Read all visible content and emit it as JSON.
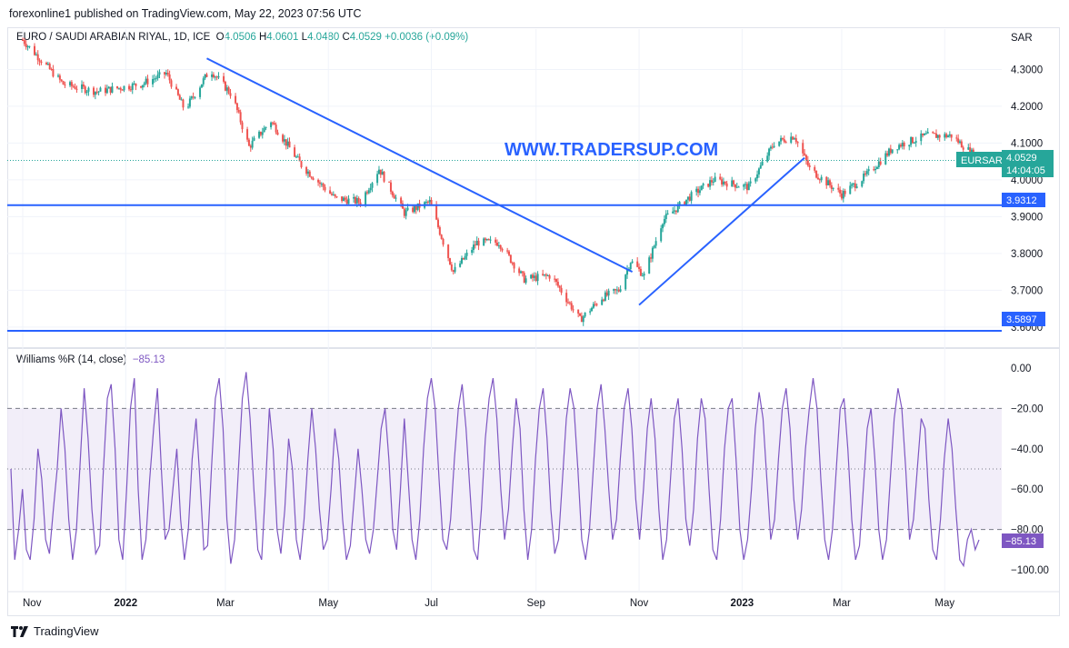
{
  "header": {
    "published": "forexonline1 published on TradingView.com, May 22, 2023 07:56 UTC"
  },
  "legend": {
    "symbol": "EURO / SAUDI ARABIAN RIYAL, 1D, ICE",
    "o_label": "O",
    "o": "4.0506",
    "h_label": "H",
    "h": "4.0601",
    "l_label": "L",
    "l": "4.0480",
    "c_label": "C",
    "c": "4.0529",
    "change": "+0.0036 (+0.09%)"
  },
  "indicator_legend": {
    "name": "Williams %R (14, close)",
    "value": "−85.13"
  },
  "watermark": "WWW.TRADERSUP.COM",
  "currency": "SAR",
  "price_tags": {
    "symbol": "EURSAR",
    "last": "4.0529",
    "countdown": "14:04:05",
    "upper_line": "3.9312",
    "lower_line": "3.5897",
    "wr_value": "−85.13"
  },
  "footer": {
    "brand": "TradingView"
  },
  "colors": {
    "up": "#26a69a",
    "down": "#ef5350",
    "trendline": "#2962ff",
    "wr": "#7e57c2",
    "band": "#ede7f6"
  },
  "chart_data": [
    {
      "type": "candlestick",
      "title": "EURO / SAUDI ARABIAN RIYAL, 1D, ICE",
      "y_ticks": [
        "4.3000",
        "4.2000",
        "4.1000",
        "4.0000",
        "3.9000",
        "3.8000",
        "3.7000",
        "3.6000"
      ],
      "x_ticks": [
        "Nov",
        "2022",
        "Mar",
        "May",
        "Jul",
        "Sep",
        "Nov",
        "2023",
        "Mar",
        "May"
      ],
      "ylim": [
        3.57,
        4.39
      ],
      "horizontal_levels": [
        3.9312,
        3.5897
      ],
      "last_price": 4.0529,
      "price_path": [
        [
          "2021-11-01",
          4.38
        ],
        [
          "2021-11-25",
          4.26
        ],
        [
          "2021-12-15",
          4.24
        ],
        [
          "2022-01-10",
          4.26
        ],
        [
          "2022-01-25",
          4.29
        ],
        [
          "2022-02-05",
          4.19
        ],
        [
          "2022-02-20",
          4.3
        ],
        [
          "2022-03-05",
          4.23
        ],
        [
          "2022-03-15",
          4.09
        ],
        [
          "2022-03-28",
          4.16
        ],
        [
          "2022-04-15",
          4.04
        ],
        [
          "2022-05-05",
          3.95
        ],
        [
          "2022-05-20",
          3.94
        ],
        [
          "2022-05-31",
          4.03
        ],
        [
          "2022-06-15",
          3.91
        ],
        [
          "2022-06-30",
          3.94
        ],
        [
          "2022-07-14",
          3.75
        ],
        [
          "2022-07-28",
          3.83
        ],
        [
          "2022-08-10",
          3.83
        ],
        [
          "2022-08-25",
          3.73
        ],
        [
          "2022-09-10",
          3.74
        ],
        [
          "2022-09-27",
          3.62
        ],
        [
          "2022-10-10",
          3.68
        ],
        [
          "2022-10-20",
          3.7
        ],
        [
          "2022-10-27",
          3.78
        ],
        [
          "2022-11-04",
          3.74
        ],
        [
          "2022-11-15",
          3.89
        ],
        [
          "2022-11-30",
          3.95
        ],
        [
          "2022-12-15",
          4.0
        ],
        [
          "2023-01-05",
          3.98
        ],
        [
          "2023-01-20",
          4.1
        ],
        [
          "2023-02-01",
          4.12
        ],
        [
          "2023-02-10",
          4.03
        ],
        [
          "2023-03-01",
          3.96
        ],
        [
          "2023-03-15",
          4.01
        ],
        [
          "2023-04-01",
          4.09
        ],
        [
          "2023-04-20",
          4.12
        ],
        [
          "2023-05-05",
          4.12
        ],
        [
          "2023-05-22",
          4.0529
        ]
      ],
      "trendlines": [
        {
          "from": [
            "2022-02-18",
            4.33
          ],
          "to": [
            "2022-10-28",
            3.75
          ]
        },
        {
          "from": [
            "2022-11-01",
            3.66
          ],
          "to": [
            "2023-02-07",
            4.06
          ]
        }
      ]
    },
    {
      "type": "line",
      "title": "Williams %R (14, close)",
      "y_ticks": [
        "0.00",
        "−20.00",
        "−40.00",
        "−60.00",
        "−80.00",
        "−100.00"
      ],
      "ylim": [
        -100,
        0
      ],
      "band": [
        -80,
        -20
      ],
      "levels": [
        -20,
        -50,
        -80
      ],
      "last_value": -85.13,
      "series": [
        {
          "values": [
            -50,
            -95,
            -80,
            -60,
            -90,
            -95,
            -75,
            -40,
            -55,
            -85,
            -92,
            -70,
            -50,
            -20,
            -40,
            -75,
            -95,
            -80,
            -45,
            -10,
            -35,
            -70,
            -92,
            -88,
            -50,
            -15,
            -8,
            -40,
            -85,
            -95,
            -60,
            -20,
            -5,
            -60,
            -95,
            -85,
            -55,
            -30,
            -10,
            -50,
            -85,
            -80,
            -60,
            -40,
            -75,
            -95,
            -80,
            -45,
            -25,
            -55,
            -90,
            -88,
            -50,
            -15,
            -5,
            -30,
            -75,
            -97,
            -85,
            -50,
            -15,
            -2,
            -25,
            -60,
            -90,
            -95,
            -60,
            -20,
            -40,
            -80,
            -92,
            -70,
            -35,
            -50,
            -85,
            -95,
            -75,
            -45,
            -20,
            -40,
            -70,
            -90,
            -85,
            -60,
            -30,
            -45,
            -75,
            -95,
            -88,
            -65,
            -40,
            -60,
            -85,
            -92,
            -80,
            -55,
            -30,
            -20,
            -45,
            -80,
            -90,
            -60,
            -25,
            -55,
            -85,
            -95,
            -75,
            -40,
            -15,
            -5,
            -20,
            -55,
            -85,
            -90,
            -75,
            -45,
            -20,
            -8,
            -30,
            -60,
            -90,
            -95,
            -70,
            -35,
            -15,
            -5,
            -25,
            -60,
            -85,
            -70,
            -40,
            -15,
            -30,
            -70,
            -95,
            -80,
            -45,
            -20,
            -10,
            -35,
            -70,
            -92,
            -85,
            -55,
            -25,
            -10,
            -20,
            -50,
            -85,
            -95,
            -80,
            -50,
            -20,
            -8,
            -30,
            -60,
            -85,
            -75,
            -45,
            -20,
            -10,
            -30,
            -65,
            -85,
            -60,
            -30,
            -15,
            -35,
            -70,
            -95,
            -85,
            -55,
            -25,
            -15,
            -40,
            -75,
            -88,
            -70,
            -35,
            -15,
            -25,
            -60,
            -90,
            -95,
            -75,
            -40,
            -20,
            -15,
            -45,
            -80,
            -95,
            -85,
            -60,
            -30,
            -12,
            -25,
            -55,
            -85,
            -75,
            -45,
            -20,
            -10,
            -30,
            -65,
            -85,
            -70,
            -40,
            -20,
            -5,
            -20,
            -55,
            -85,
            -95,
            -80,
            -50,
            -20,
            -15,
            -40,
            -75,
            -95,
            -88,
            -60,
            -30,
            -20,
            -45,
            -80,
            -95,
            -85,
            -55,
            -25,
            -10,
            -20,
            -50,
            -85,
            -75,
            -50,
            -25,
            -30,
            -65,
            -90,
            -95,
            -75,
            -45,
            -25,
            -40,
            -70,
            -95,
            -98,
            -85,
            -80,
            -90,
            -85.13
          ]
        }
      ]
    }
  ]
}
